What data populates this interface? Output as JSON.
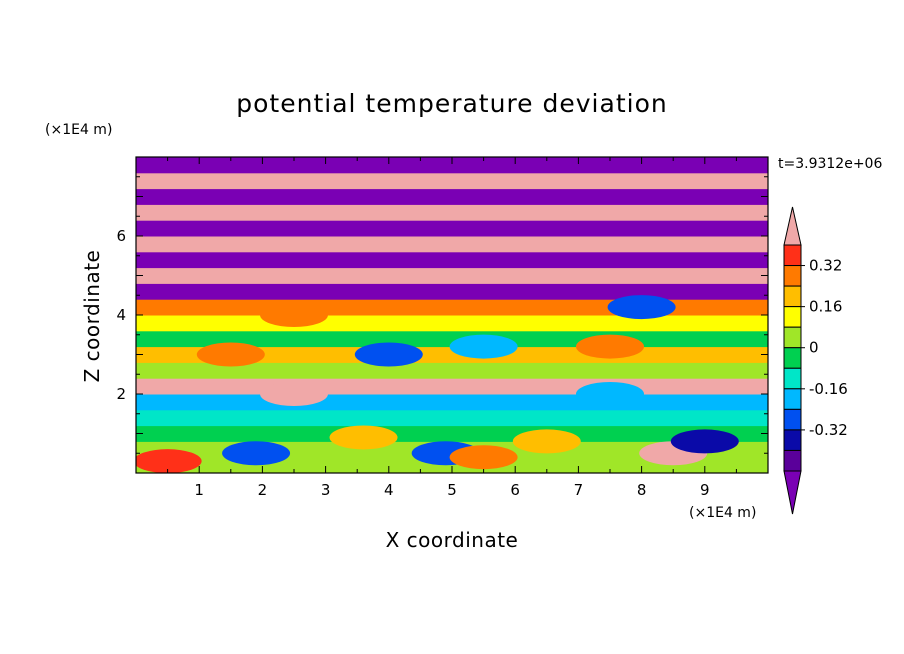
{
  "chart_data": {
    "type": "heatmap",
    "title": "potential temperature deviation",
    "xlabel": "X coordinate",
    "ylabel": "Z coordinate",
    "x_unit": "(×1E4 m)",
    "y_unit": "(×1E4 m)",
    "time_label": "t=3.9312e+06",
    "xlim": [
      0,
      10
    ],
    "ylim": [
      0,
      8
    ],
    "x_ticks": [
      "1",
      "2",
      "3",
      "4",
      "5",
      "6",
      "7",
      "8",
      "9"
    ],
    "y_ticks": [
      "2",
      "4",
      "6"
    ],
    "x_tick_values": [
      1,
      2,
      3,
      4,
      5,
      6,
      7,
      8,
      9
    ],
    "y_tick_values": [
      2,
      4,
      6
    ],
    "colorbar": {
      "levels": [
        -0.48,
        -0.4,
        -0.32,
        -0.24,
        -0.16,
        -0.08,
        0,
        0.08,
        0.16,
        0.24,
        0.32,
        0.4,
        0.48
      ],
      "labels": [
        "0.32",
        "0.16",
        "0",
        "-0.16",
        "-0.32"
      ],
      "label_values": [
        0.32,
        0.16,
        0,
        -0.16,
        -0.32
      ],
      "colors": [
        "#7a00b4",
        "#5a009a",
        "#0a0aa8",
        "#0050f0",
        "#00b8ff",
        "#00e6c8",
        "#00d050",
        "#a0e628",
        "#ffff00",
        "#ffbe00",
        "#ff7a00",
        "#ff3018",
        "#f0a8a8"
      ]
    },
    "z_bands": [
      {
        "z0": 0.0,
        "z1": 0.4,
        "value": 0.04
      },
      {
        "z0": 0.4,
        "z1": 0.8,
        "value": 0.08
      },
      {
        "z0": 0.8,
        "z1": 1.2,
        "value": 0.0
      },
      {
        "z0": 1.2,
        "z1": 1.6,
        "value": -0.1
      },
      {
        "z0": 1.6,
        "z1": 2.0,
        "value": -0.2
      },
      {
        "z0": 2.0,
        "z1": 2.4,
        "value": 0.5
      },
      {
        "z0": 2.4,
        "z1": 2.8,
        "value": 0.06
      },
      {
        "z0": 2.8,
        "z1": 3.2,
        "value": 0.2
      },
      {
        "z0": 3.2,
        "z1": 3.6,
        "value": -0.05
      },
      {
        "z0": 3.6,
        "z1": 4.0,
        "value": 0.1
      },
      {
        "z0": 4.0,
        "z1": 4.4,
        "value": 0.3
      },
      {
        "z0": 4.4,
        "z1": 4.8,
        "value": -0.5
      },
      {
        "z0": 4.8,
        "z1": 5.2,
        "value": 0.5
      },
      {
        "z0": 5.2,
        "z1": 5.6,
        "value": -0.5
      },
      {
        "z0": 5.6,
        "z1": 6.0,
        "value": 0.5
      },
      {
        "z0": 6.0,
        "z1": 6.4,
        "value": -0.5
      },
      {
        "z0": 6.4,
        "z1": 6.8,
        "value": 0.5
      },
      {
        "z0": 6.8,
        "z1": 7.2,
        "value": -0.5
      },
      {
        "z0": 7.2,
        "z1": 7.6,
        "value": 0.5
      },
      {
        "z0": 7.6,
        "z1": 8.0,
        "value": -0.5
      }
    ],
    "cells": [
      {
        "x": 0.5,
        "z": 0.3,
        "value": 0.4
      },
      {
        "x": 1.9,
        "z": 0.5,
        "value": -0.24
      },
      {
        "x": 4.9,
        "z": 0.5,
        "value": -0.3
      },
      {
        "x": 5.5,
        "z": 0.4,
        "value": 0.3
      },
      {
        "x": 8.5,
        "z": 0.5,
        "value": 0.45
      },
      {
        "x": 9.0,
        "z": 0.8,
        "value": -0.35
      },
      {
        "x": 6.5,
        "z": 0.8,
        "value": 0.2
      },
      {
        "x": 3.6,
        "z": 0.9,
        "value": 0.18
      },
      {
        "x": 2.5,
        "z": 2.0,
        "value": 0.5
      },
      {
        "x": 7.5,
        "z": 2.0,
        "value": -0.16
      },
      {
        "x": 1.5,
        "z": 3.0,
        "value": 0.3
      },
      {
        "x": 4.0,
        "z": 3.0,
        "value": -0.3
      },
      {
        "x": 5.5,
        "z": 3.2,
        "value": -0.2
      },
      {
        "x": 7.5,
        "z": 3.2,
        "value": 0.3
      },
      {
        "x": 2.5,
        "z": 4.0,
        "value": 0.3
      },
      {
        "x": 8.0,
        "z": 4.2,
        "value": -0.3
      }
    ]
  }
}
